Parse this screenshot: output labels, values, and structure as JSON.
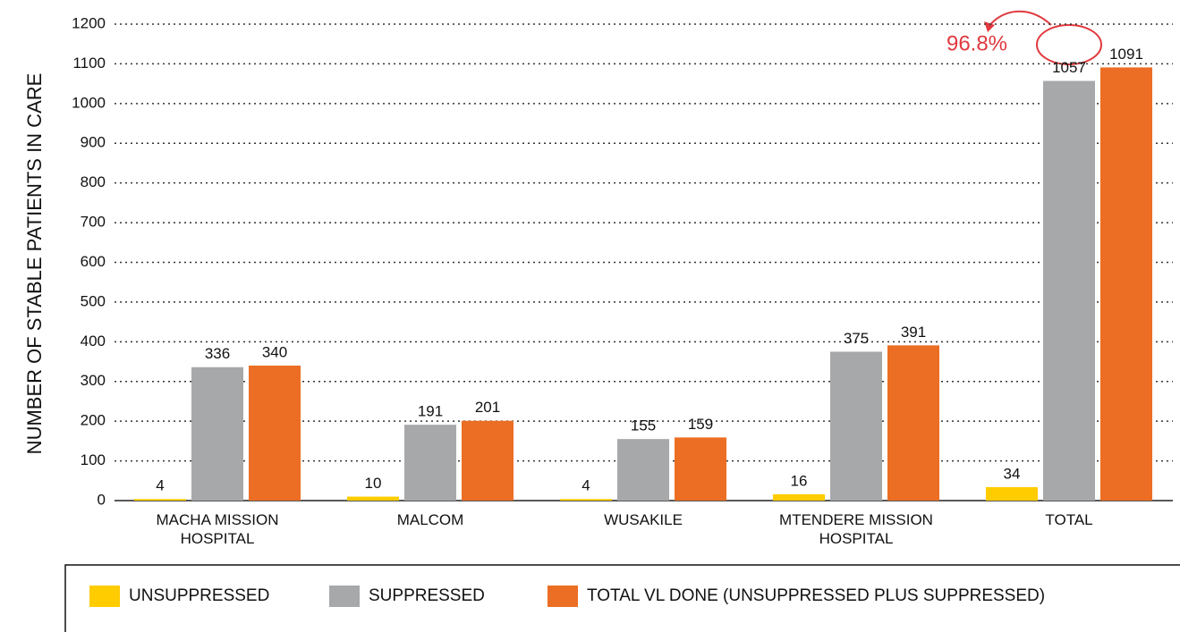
{
  "chart_data": {
    "type": "bar",
    "y_label": "NUMBER OF STABLE PATIENTS IN CARE",
    "categories": [
      "MACHA MISSION HOSPITAL",
      "MALCOM",
      "WUSAKILE",
      "MTENDERE MISSION HOSPITAL",
      "TOTAL"
    ],
    "series": [
      {
        "name": "UNSUPPRESSED",
        "color": "#ffcc00",
        "values": [
          4,
          10,
          4,
          16,
          34
        ]
      },
      {
        "name": "SUPPRESSED",
        "color": "#a7a8aa",
        "values": [
          336,
          191,
          155,
          375,
          1057
        ]
      },
      {
        "name": "TOTAL VL DONE (UNSUPPRESSED PLUS SUPPRESSED)",
        "color": "#eb6e24",
        "values": [
          340,
          201,
          159,
          391,
          1091
        ]
      }
    ],
    "ylim": [
      0,
      1200
    ],
    "yticks": [
      0,
      100,
      200,
      300,
      400,
      500,
      600,
      700,
      800,
      900,
      1000,
      1100,
      1200
    ],
    "grid": true,
    "annotation": "96.8%"
  }
}
